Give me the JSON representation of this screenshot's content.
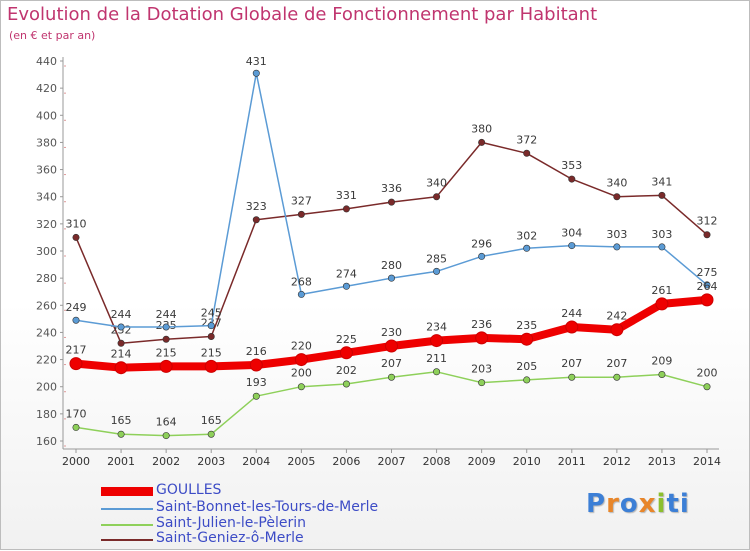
{
  "title": "Evolution de la Dotation Globale de Fonctionnement par Habitant",
  "subtitle": "(en € et par an)",
  "logo_text": "Proxiti",
  "chart_data": {
    "type": "line",
    "x": [
      "2000",
      "2001",
      "2002",
      "2003",
      "2004",
      "2005",
      "2006",
      "2007",
      "2008",
      "2009",
      "2010",
      "2011",
      "2012",
      "2013",
      "2014"
    ],
    "ylim": [
      160,
      440
    ],
    "yticks": [
      160,
      180,
      200,
      220,
      240,
      260,
      280,
      300,
      320,
      340,
      360,
      380,
      400,
      420,
      440
    ],
    "grid": false,
    "legend_position": "bottom-left",
    "series": [
      {
        "name": "GOULLES",
        "color": "#ee0000",
        "values": [
          217,
          214,
          215,
          215,
          216,
          220,
          225,
          230,
          234,
          236,
          235,
          244,
          242,
          261,
          264
        ]
      },
      {
        "name": "Saint-Bonnet-les-Tours-de-Merle",
        "color": "#5b9bd5",
        "values": [
          249,
          244,
          244,
          245,
          431,
          268,
          274,
          280,
          285,
          296,
          302,
          304,
          303,
          303,
          275
        ]
      },
      {
        "name": "Saint-Julien-le-Pèlerin",
        "color": "#8ed05a",
        "values": [
          170,
          165,
          164,
          165,
          193,
          200,
          202,
          207,
          211,
          203,
          205,
          207,
          207,
          209,
          200
        ]
      },
      {
        "name": "Saint-Geniez-ô-Merle",
        "color": "#7a2a2a",
        "values": [
          310,
          232,
          235,
          237,
          323,
          327,
          331,
          336,
          340,
          380,
          372,
          353,
          340,
          341,
          312
        ]
      }
    ]
  }
}
